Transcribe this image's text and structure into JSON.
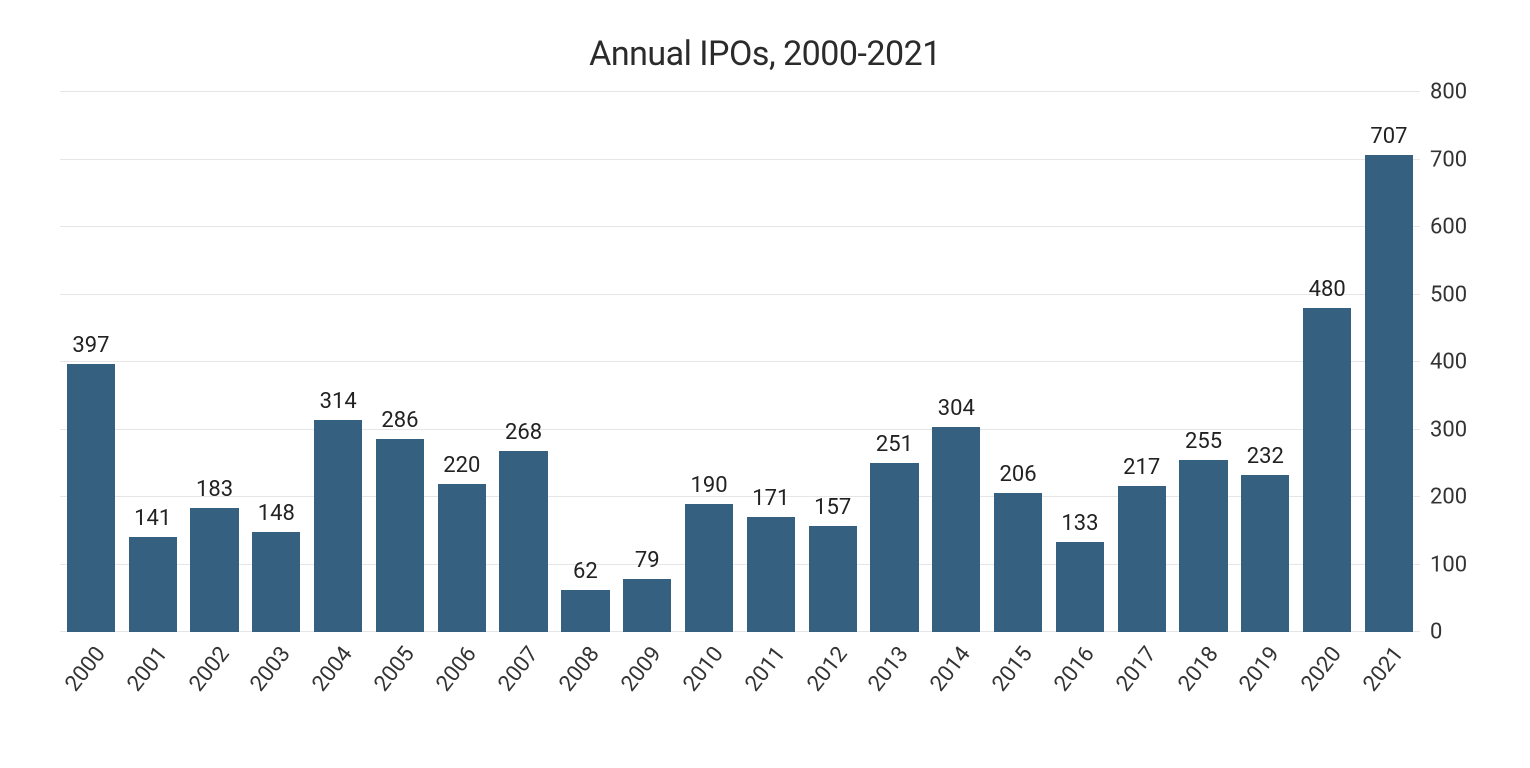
{
  "chart": {
    "type": "bar",
    "title": "Annual IPOs, 2000-2021",
    "title_fontsize": 34,
    "title_color": "#2b2b2b",
    "background_color": "#ffffff",
    "bar_color": "#36607f",
    "bar_width_ratio": 0.78,
    "grid_color": "#e6e6e6",
    "axis_text_color": "#333333",
    "value_label_color": "#222222",
    "x_label_rotation_deg": -52,
    "x_label_fontsize": 22,
    "y_tick_fontsize": 22,
    "value_label_fontsize": 22,
    "ylim": [
      0,
      800
    ],
    "ytick_step": 100,
    "yticks": [
      0,
      100,
      200,
      300,
      400,
      500,
      600,
      700,
      800
    ],
    "categories": [
      "2000",
      "2001",
      "2002",
      "2003",
      "2004",
      "2005",
      "2006",
      "2007",
      "2008",
      "2009",
      "2010",
      "2011",
      "2012",
      "2013",
      "2014",
      "2015",
      "2016",
      "2017",
      "2018",
      "2019",
      "2020",
      "2021"
    ],
    "values": [
      397,
      141,
      183,
      148,
      314,
      286,
      220,
      268,
      62,
      79,
      190,
      171,
      157,
      251,
      304,
      206,
      133,
      217,
      255,
      232,
      480,
      707
    ]
  }
}
